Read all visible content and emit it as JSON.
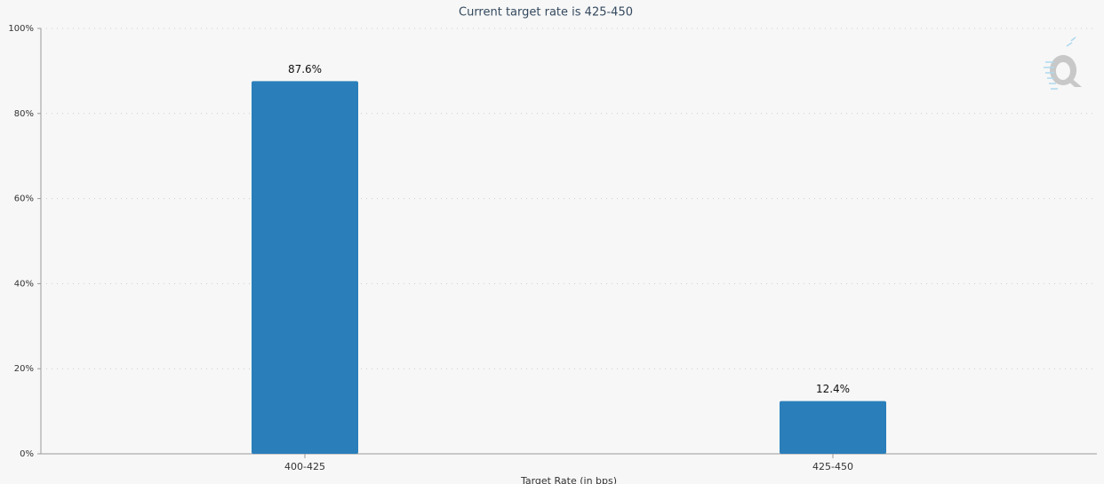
{
  "chart_data": {
    "type": "bar",
    "title": "Current target rate is 425-450",
    "x_label": "Target Rate (in bps)",
    "categories": [
      "400-425",
      "425-450"
    ],
    "values": [
      87.6,
      12.4
    ],
    "value_labels": [
      "87.6%",
      "12.4%"
    ],
    "color": "#2a7fba",
    "ylim": [
      0,
      100
    ],
    "yticks": [
      {
        "value": 0,
        "label": "0%"
      },
      {
        "value": 20,
        "label": "20%"
      },
      {
        "value": 40,
        "label": "40%"
      },
      {
        "value": 60,
        "label": "60%"
      },
      {
        "value": 80,
        "label": "80%"
      },
      {
        "value": 100,
        "label": "100%"
      }
    ],
    "grid": true
  }
}
